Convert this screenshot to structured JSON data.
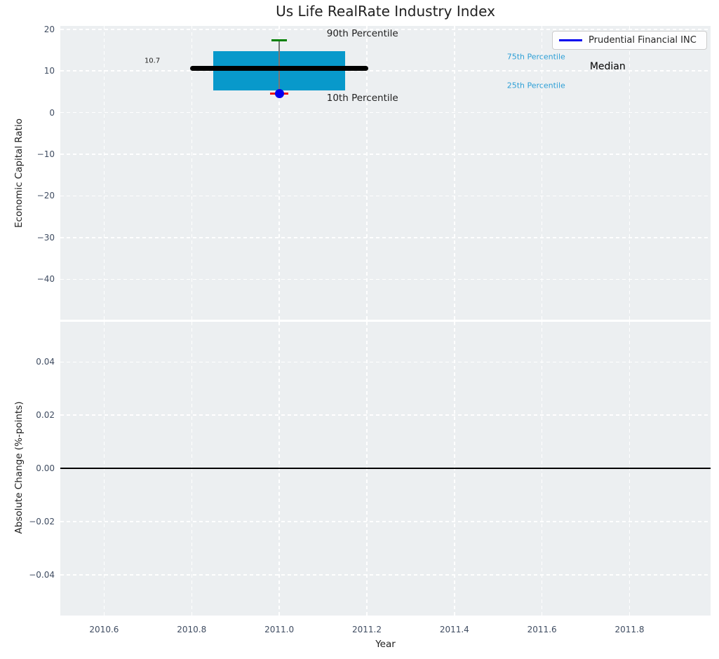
{
  "title": "Us Life RealRate Industry Index",
  "legend": {
    "label": "Prudential Financial INC",
    "line_color": "#0000ee"
  },
  "colors": {
    "plot_bg": "#eceff1",
    "grid": "#ffffff",
    "tick_label": "#3f4c61",
    "text": "#212121",
    "box_fill": "#0899cb",
    "median": "#000000",
    "whisker": "#777777",
    "cap_90": "#008000",
    "cap_10": "#ee1111",
    "marker": "#0000ee",
    "percentile_label": "#2d9fd6",
    "zero_line": "#000000"
  },
  "chart_data": [
    {
      "type": "boxplot",
      "title": "Us Life RealRate Industry Index",
      "ylabel": "Economic Capital Ratio",
      "xlim": [
        2010.5,
        2011.985
      ],
      "ylim": [
        -49.7,
        20.8
      ],
      "grid": true,
      "legend_position": "upper right",
      "xticklabels_visible": false,
      "xticks": [
        {
          "v": 2010.6,
          "label": "2010.6"
        },
        {
          "v": 2010.8,
          "label": "2010.8"
        },
        {
          "v": 2011.0,
          "label": "2011.0"
        },
        {
          "v": 2011.2,
          "label": "2011.2"
        },
        {
          "v": 2011.4,
          "label": "2011.4"
        },
        {
          "v": 2011.6,
          "label": "2011.6"
        },
        {
          "v": 2011.8,
          "label": "2011.8"
        }
      ],
      "yticks": [
        {
          "v": 20,
          "label": "20"
        },
        {
          "v": 10,
          "label": "10"
        },
        {
          "v": 0,
          "label": "0"
        },
        {
          "v": -10,
          "label": "−10"
        },
        {
          "v": -20,
          "label": "−20"
        },
        {
          "v": -30,
          "label": "−30"
        },
        {
          "v": -40,
          "label": "−40"
        }
      ],
      "box": {
        "x": 2011.0,
        "p90": 17.3,
        "p75": 14.7,
        "median": 10.7,
        "p25": 5.3,
        "p10": 4.5,
        "company_value": 4.5,
        "box_halfwidth": 0.151,
        "median_halfwidth": 0.203,
        "cap_halfwidth": 0.018
      },
      "annotations": [
        {
          "name": "annotation-90th-percentile",
          "text": "90th Percentile",
          "x": 2011.19,
          "y": 18.9,
          "color": "#212121",
          "size": 13.5,
          "anchor": "center"
        },
        {
          "name": "annotation-10th-percentile",
          "text": "10th Percentile",
          "x": 2011.19,
          "y": 3.45,
          "color": "#212121",
          "size": 13.5,
          "anchor": "center"
        },
        {
          "name": "annotation-75th-percentile",
          "text": "75th Percentile",
          "x": 2011.52,
          "y": 13.4,
          "color": "#2d9fd6",
          "size": 11,
          "anchor": "left"
        },
        {
          "name": "annotation-25th-percentile",
          "text": "25th Percentile",
          "x": 2011.52,
          "y": 6.5,
          "color": "#2d9fd6",
          "size": 11,
          "anchor": "left"
        },
        {
          "name": "annotation-median",
          "text": "Median",
          "x": 2011.75,
          "y": 11.0,
          "color": "#000000",
          "size": 14,
          "anchor": "center"
        },
        {
          "name": "annotation-median-value",
          "text": "10.7",
          "x": 2010.71,
          "y": 12.4,
          "color": "#212121",
          "size": 10,
          "anchor": "center"
        }
      ]
    },
    {
      "type": "line",
      "ylabel": "Absolute Change (%-points)",
      "xlabel": "Year",
      "xlim": [
        2010.5,
        2011.985
      ],
      "ylim": [
        -0.0553,
        0.0551
      ],
      "grid": true,
      "xticklabels_visible": true,
      "zero_line": 0.0,
      "series": [],
      "xticks": [
        {
          "v": 2010.6,
          "label": "2010.6"
        },
        {
          "v": 2010.8,
          "label": "2010.8"
        },
        {
          "v": 2011.0,
          "label": "2011.0"
        },
        {
          "v": 2011.2,
          "label": "2011.2"
        },
        {
          "v": 2011.4,
          "label": "2011.4"
        },
        {
          "v": 2011.6,
          "label": "2011.6"
        },
        {
          "v": 2011.8,
          "label": "2011.8"
        }
      ],
      "yticks": [
        {
          "v": 0.04,
          "label": "0.04"
        },
        {
          "v": 0.02,
          "label": "0.02"
        },
        {
          "v": 0.0,
          "label": "0.00"
        },
        {
          "v": -0.02,
          "label": "−0.02"
        },
        {
          "v": -0.04,
          "label": "−0.04"
        }
      ]
    }
  ]
}
